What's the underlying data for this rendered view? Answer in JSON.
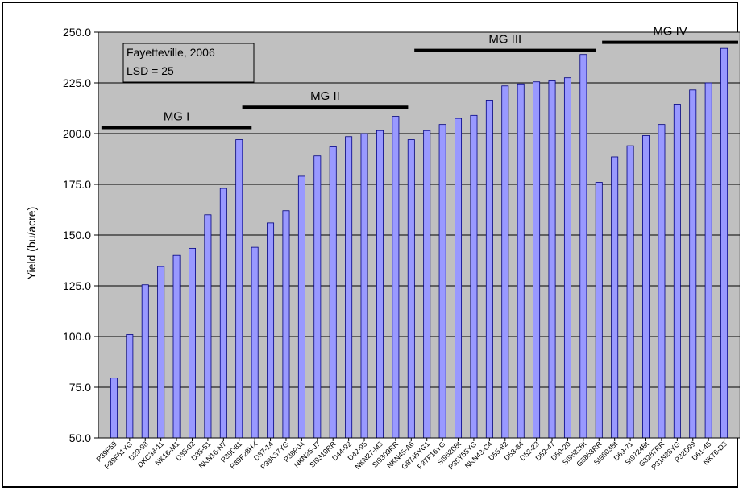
{
  "chart_data": {
    "type": "bar",
    "ylabel": "Yield (bu/acre)",
    "ylim": [
      50,
      250
    ],
    "yticks": [
      "50.0",
      "75.0",
      "100.0",
      "125.0",
      "150.0",
      "175.0",
      "200.0",
      "225.0",
      "250.0"
    ],
    "grid": true,
    "colors": {
      "plot_bg": "#c0c0c0",
      "bar_fill": "#9999ff",
      "bar_edge": "#000080"
    },
    "annotation": {
      "line1": "Fayetteville, 2006",
      "line2": "LSD = 25"
    },
    "groups": [
      {
        "label": "MG I",
        "start": 0,
        "end": 9,
        "y": 203
      },
      {
        "label": "MG II",
        "start": 9,
        "end": 19,
        "y": 213
      },
      {
        "label": "MG III",
        "start": 20,
        "end": 31,
        "y": 241
      },
      {
        "label": "MG IV",
        "start": 32,
        "end": 41,
        "y": 245
      }
    ],
    "categories": [
      "P39F59",
      "P39F61YG",
      "D29-98",
      "DKC33-11",
      "NK16-M1",
      "D35-02",
      "D35-51",
      "NKN16-N7",
      "P39D81",
      "P39F28HX",
      "D37-14",
      "P39K37YG",
      "P38P04",
      "NKN25-J7",
      "SI9310RR",
      "D44-92",
      "D42-95",
      "NKN27-M3",
      "SI9309RR",
      "NKN45-A6",
      "G8745YG1",
      "P37F16YG",
      "SI9620Bt",
      "P35Y55YG",
      "NKN43-C4",
      "D55-82",
      "D53-34",
      "D52-23",
      "D52-47",
      "D50-20",
      "SI9622Bt",
      "G8853RR",
      "SI9803Bt",
      "D69-71",
      "SI9724Bt",
      "G8287RR",
      "P31N28YG",
      "P32D99",
      "D61-45",
      "NK76-D3"
    ],
    "values": [
      79.5,
      101,
      125.5,
      134.5,
      140,
      143.5,
      160,
      173,
      197,
      144,
      156,
      162,
      179,
      189,
      193.5,
      198.5,
      200,
      201.5,
      208.5,
      197,
      201.5,
      204.5,
      207.5,
      209,
      216.5,
      223.5,
      224.5,
      225.5,
      226,
      227.5,
      239,
      176,
      188.5,
      194,
      199,
      204.5,
      214.5,
      221.5,
      225,
      242
    ]
  }
}
